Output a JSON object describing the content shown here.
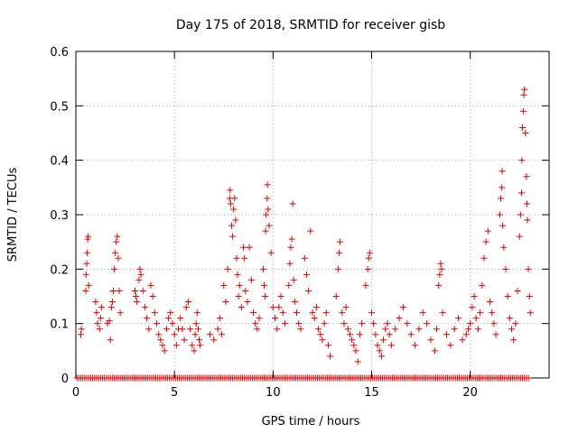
{
  "chart_data": {
    "type": "scatter",
    "title": "Day 175 of 2018, SRMTID for receiver gisb",
    "xlabel": "GPS time / hours",
    "ylabel": "SRMTID / TECUs",
    "xlim": [
      0,
      24
    ],
    "ylim": [
      0,
      0.6
    ],
    "xticks": [
      0,
      5,
      10,
      15,
      20
    ],
    "yticks": [
      0,
      0.1,
      0.2,
      0.3,
      0.4,
      0.5,
      0.6
    ],
    "xtick_labels": [
      "0",
      "5",
      "10",
      "15",
      "20"
    ],
    "ytick_labels": [
      "0",
      "0.1",
      "0.2",
      "0.3",
      "0.4",
      "0.5",
      "0.6"
    ],
    "grid": true,
    "marker": "+",
    "marker_color": "#e00000",
    "series": [
      {
        "name": "SRMTID",
        "points": [
          [
            0.25,
            0.08
          ],
          [
            0.28,
            0.09
          ],
          [
            0.5,
            0.16
          ],
          [
            0.52,
            0.19
          ],
          [
            0.55,
            0.21
          ],
          [
            0.57,
            0.23
          ],
          [
            0.6,
            0.255
          ],
          [
            0.62,
            0.26
          ],
          [
            0.65,
            0.17
          ],
          [
            1.0,
            0.14
          ],
          [
            1.05,
            0.12
          ],
          [
            1.1,
            0.1
          ],
          [
            1.2,
            0.09
          ],
          [
            1.25,
            0.11
          ],
          [
            1.3,
            0.13
          ],
          [
            1.6,
            0.1
          ],
          [
            1.7,
            0.105
          ],
          [
            1.75,
            0.07
          ],
          [
            1.8,
            0.13
          ],
          [
            1.85,
            0.14
          ],
          [
            1.9,
            0.16
          ],
          [
            1.95,
            0.2
          ],
          [
            2.0,
            0.23
          ],
          [
            2.05,
            0.25
          ],
          [
            2.1,
            0.26
          ],
          [
            2.15,
            0.22
          ],
          [
            2.2,
            0.16
          ],
          [
            2.25,
            0.12
          ],
          [
            3.0,
            0.16
          ],
          [
            3.05,
            0.15
          ],
          [
            3.1,
            0.14
          ],
          [
            3.2,
            0.18
          ],
          [
            3.25,
            0.2
          ],
          [
            3.3,
            0.19
          ],
          [
            3.4,
            0.16
          ],
          [
            3.5,
            0.13
          ],
          [
            3.6,
            0.11
          ],
          [
            3.7,
            0.09
          ],
          [
            3.8,
            0.17
          ],
          [
            3.9,
            0.15
          ],
          [
            4.0,
            0.12
          ],
          [
            4.1,
            0.1
          ],
          [
            4.2,
            0.08
          ],
          [
            4.3,
            0.07
          ],
          [
            4.4,
            0.06
          ],
          [
            4.5,
            0.05
          ],
          [
            4.6,
            0.09
          ],
          [
            4.7,
            0.11
          ],
          [
            4.8,
            0.12
          ],
          [
            4.9,
            0.1
          ],
          [
            5.0,
            0.08
          ],
          [
            5.1,
            0.06
          ],
          [
            5.2,
            0.09
          ],
          [
            5.3,
            0.11
          ],
          [
            5.4,
            0.09
          ],
          [
            5.5,
            0.07
          ],
          [
            5.6,
            0.13
          ],
          [
            5.7,
            0.14
          ],
          [
            5.8,
            0.09
          ],
          [
            5.9,
            0.06
          ],
          [
            6.0,
            0.05
          ],
          [
            6.05,
            0.08
          ],
          [
            6.1,
            0.1
          ],
          [
            6.15,
            0.12
          ],
          [
            6.2,
            0.09
          ],
          [
            6.25,
            0.07
          ],
          [
            6.3,
            0.06
          ],
          [
            6.8,
            0.08
          ],
          [
            7.0,
            0.07
          ],
          [
            7.2,
            0.09
          ],
          [
            7.3,
            0.11
          ],
          [
            7.4,
            0.08
          ],
          [
            7.5,
            0.17
          ],
          [
            7.6,
            0.14
          ],
          [
            7.7,
            0.2
          ],
          [
            7.8,
            0.33
          ],
          [
            7.82,
            0.345
          ],
          [
            7.85,
            0.32
          ],
          [
            7.9,
            0.28
          ],
          [
            7.95,
            0.26
          ],
          [
            8.0,
            0.31
          ],
          [
            8.05,
            0.33
          ],
          [
            8.1,
            0.29
          ],
          [
            8.15,
            0.22
          ],
          [
            8.2,
            0.19
          ],
          [
            8.25,
            0.15
          ],
          [
            8.3,
            0.17
          ],
          [
            8.4,
            0.13
          ],
          [
            8.5,
            0.24
          ],
          [
            8.55,
            0.22
          ],
          [
            8.6,
            0.16
          ],
          [
            8.7,
            0.14
          ],
          [
            8.8,
            0.24
          ],
          [
            8.9,
            0.18
          ],
          [
            9.0,
            0.12
          ],
          [
            9.1,
            0.1
          ],
          [
            9.2,
            0.09
          ],
          [
            9.3,
            0.11
          ],
          [
            9.5,
            0.2
          ],
          [
            9.55,
            0.17
          ],
          [
            9.6,
            0.15
          ],
          [
            9.62,
            0.27
          ],
          [
            9.65,
            0.3
          ],
          [
            9.7,
            0.33
          ],
          [
            9.72,
            0.355
          ],
          [
            9.75,
            0.31
          ],
          [
            9.8,
            0.28
          ],
          [
            9.9,
            0.23
          ],
          [
            10.0,
            0.13
          ],
          [
            10.1,
            0.11
          ],
          [
            10.2,
            0.09
          ],
          [
            10.3,
            0.13
          ],
          [
            10.4,
            0.15
          ],
          [
            10.5,
            0.12
          ],
          [
            10.6,
            0.1
          ],
          [
            10.8,
            0.17
          ],
          [
            10.85,
            0.21
          ],
          [
            10.9,
            0.24
          ],
          [
            10.95,
            0.255
          ],
          [
            11.0,
            0.32
          ],
          [
            11.05,
            0.18
          ],
          [
            11.1,
            0.14
          ],
          [
            11.2,
            0.12
          ],
          [
            11.3,
            0.1
          ],
          [
            11.4,
            0.09
          ],
          [
            11.6,
            0.22
          ],
          [
            11.7,
            0.19
          ],
          [
            11.8,
            0.16
          ],
          [
            11.9,
            0.27
          ],
          [
            12.0,
            0.12
          ],
          [
            12.1,
            0.11
          ],
          [
            12.2,
            0.13
          ],
          [
            12.3,
            0.09
          ],
          [
            12.4,
            0.08
          ],
          [
            12.5,
            0.07
          ],
          [
            12.6,
            0.1
          ],
          [
            12.7,
            0.12
          ],
          [
            12.8,
            0.06
          ],
          [
            12.9,
            0.04
          ],
          [
            13.2,
            0.15
          ],
          [
            13.3,
            0.2
          ],
          [
            13.35,
            0.23
          ],
          [
            13.4,
            0.25
          ],
          [
            13.5,
            0.12
          ],
          [
            13.6,
            0.1
          ],
          [
            13.7,
            0.13
          ],
          [
            13.8,
            0.09
          ],
          [
            13.9,
            0.08
          ],
          [
            14.0,
            0.07
          ],
          [
            14.1,
            0.06
          ],
          [
            14.2,
            0.05
          ],
          [
            14.3,
            0.03
          ],
          [
            14.4,
            0.08
          ],
          [
            14.5,
            0.1
          ],
          [
            14.7,
            0.17
          ],
          [
            14.8,
            0.2
          ],
          [
            14.85,
            0.22
          ],
          [
            14.9,
            0.23
          ],
          [
            15.0,
            0.12
          ],
          [
            15.1,
            0.1
          ],
          [
            15.2,
            0.08
          ],
          [
            15.3,
            0.06
          ],
          [
            15.4,
            0.05
          ],
          [
            15.5,
            0.04
          ],
          [
            15.6,
            0.07
          ],
          [
            15.7,
            0.09
          ],
          [
            15.8,
            0.1
          ],
          [
            15.9,
            0.08
          ],
          [
            16.0,
            0.06
          ],
          [
            16.2,
            0.09
          ],
          [
            16.4,
            0.11
          ],
          [
            16.6,
            0.13
          ],
          [
            16.8,
            0.1
          ],
          [
            17.0,
            0.08
          ],
          [
            17.2,
            0.06
          ],
          [
            17.4,
            0.09
          ],
          [
            17.6,
            0.12
          ],
          [
            17.8,
            0.1
          ],
          [
            18.0,
            0.07
          ],
          [
            18.2,
            0.05
          ],
          [
            18.3,
            0.09
          ],
          [
            18.4,
            0.17
          ],
          [
            18.45,
            0.19
          ],
          [
            18.5,
            0.21
          ],
          [
            18.55,
            0.2
          ],
          [
            18.6,
            0.12
          ],
          [
            18.8,
            0.08
          ],
          [
            19.0,
            0.06
          ],
          [
            19.2,
            0.09
          ],
          [
            19.4,
            0.11
          ],
          [
            19.6,
            0.07
          ],
          [
            19.8,
            0.08
          ],
          [
            19.9,
            0.09
          ],
          [
            20.0,
            0.1
          ],
          [
            20.1,
            0.13
          ],
          [
            20.2,
            0.15
          ],
          [
            20.3,
            0.11
          ],
          [
            20.4,
            0.09
          ],
          [
            20.5,
            0.12
          ],
          [
            20.6,
            0.17
          ],
          [
            20.7,
            0.22
          ],
          [
            20.8,
            0.25
          ],
          [
            20.9,
            0.27
          ],
          [
            21.0,
            0.14
          ],
          [
            21.1,
            0.12
          ],
          [
            21.2,
            0.1
          ],
          [
            21.3,
            0.08
          ],
          [
            21.5,
            0.3
          ],
          [
            21.55,
            0.33
          ],
          [
            21.6,
            0.35
          ],
          [
            21.62,
            0.38
          ],
          [
            21.65,
            0.28
          ],
          [
            21.7,
            0.24
          ],
          [
            21.8,
            0.2
          ],
          [
            21.9,
            0.15
          ],
          [
            22.0,
            0.11
          ],
          [
            22.1,
            0.09
          ],
          [
            22.2,
            0.07
          ],
          [
            22.3,
            0.1
          ],
          [
            22.4,
            0.16
          ],
          [
            22.5,
            0.26
          ],
          [
            22.55,
            0.3
          ],
          [
            22.6,
            0.34
          ],
          [
            22.62,
            0.4
          ],
          [
            22.65,
            0.46
          ],
          [
            22.7,
            0.49
          ],
          [
            22.72,
            0.52
          ],
          [
            22.75,
            0.53
          ],
          [
            22.8,
            0.45
          ],
          [
            22.85,
            0.37
          ],
          [
            22.88,
            0.32
          ],
          [
            22.9,
            0.29
          ],
          [
            22.95,
            0.2
          ],
          [
            23.0,
            0.15
          ],
          [
            23.05,
            0.12
          ]
        ]
      }
    ]
  }
}
